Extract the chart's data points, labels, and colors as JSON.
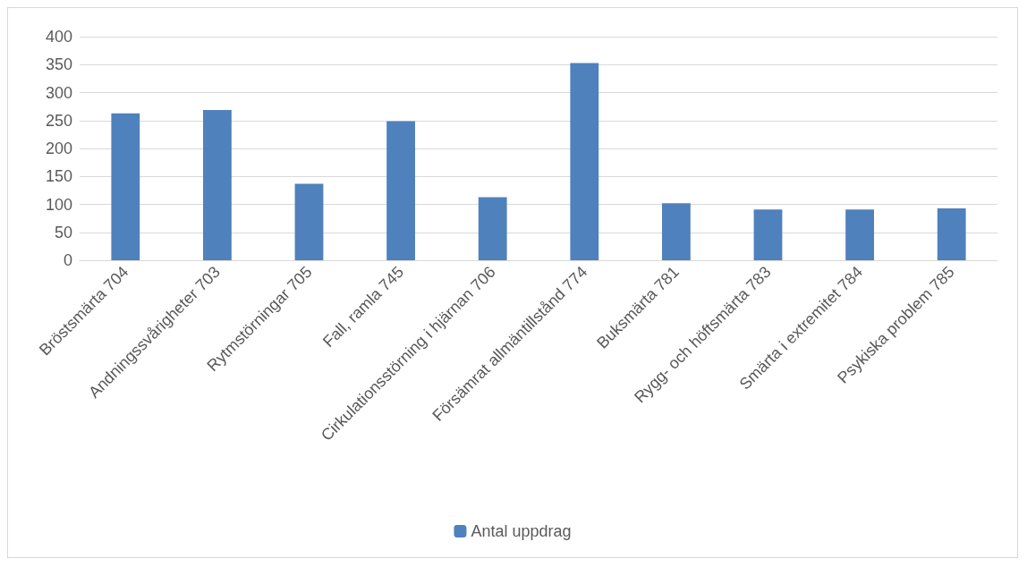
{
  "chart_data": {
    "type": "bar",
    "categories": [
      "Bröstsmärta 704",
      "Andningssvårigheter 703",
      "Rytmstörningar 705",
      "Fall, ramla 745",
      "Cirkulationsstörning i hjärnan 706",
      "Försämrat allmäntillstånd 774",
      "Buksmärta 781",
      "Rygg- och höftsmärta 783",
      "Smärta i extremitet 784",
      "Psykiska problem 785"
    ],
    "series": [
      {
        "name": "Antal uppdrag",
        "color": "#4f81bd",
        "values": [
          263,
          269,
          137,
          249,
          113,
          353,
          102,
          91,
          91,
          93
        ]
      }
    ],
    "ylim": [
      0,
      400
    ],
    "yticks": [
      0,
      50,
      100,
      150,
      200,
      250,
      300,
      350,
      400
    ],
    "grid": "y",
    "legend": "bottom"
  }
}
